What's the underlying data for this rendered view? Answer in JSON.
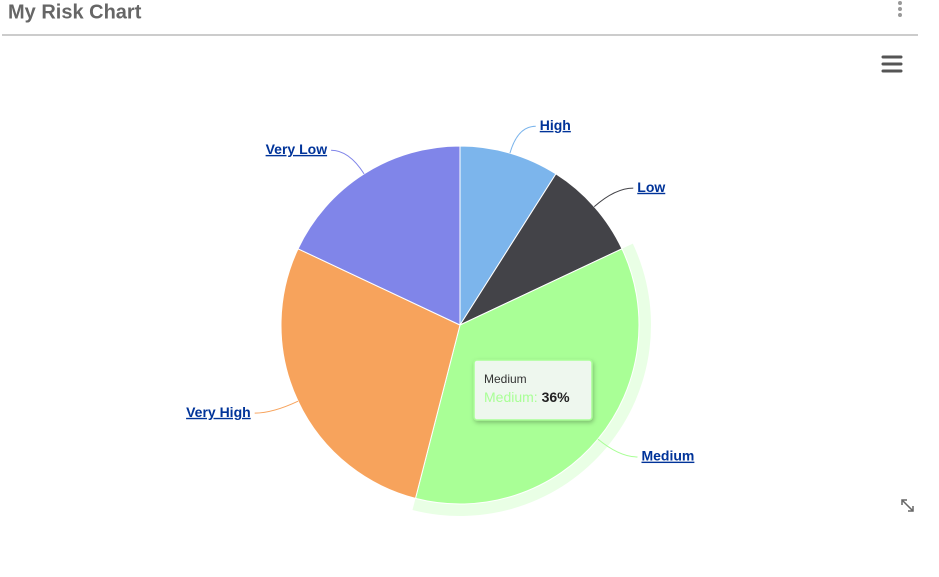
{
  "header": {
    "title": "My Risk Chart"
  },
  "chart_data": {
    "type": "pie",
    "categories": [
      "High",
      "Low",
      "Medium",
      "Very High",
      "Very Low"
    ],
    "values": [
      9,
      9,
      36,
      28,
      18
    ],
    "value_labels": [
      null,
      null,
      "36%",
      null,
      null
    ],
    "colors": [
      "#7cb5ec",
      "#434348",
      "#a9ff96",
      "#f7a35c",
      "#8085e9"
    ],
    "hovered": 2,
    "tooltip": {
      "header": "Medium",
      "label": "Medium:"
    }
  }
}
